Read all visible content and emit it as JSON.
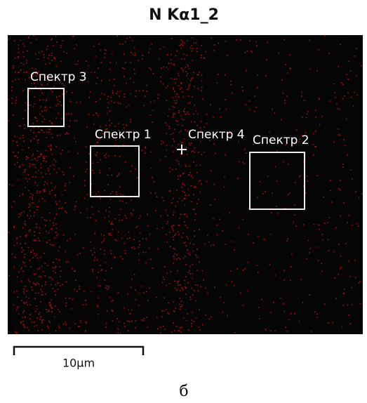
{
  "title": "N Kα1_2",
  "labels": {
    "spectrum_3": "Спектр 3",
    "spectrum_1": "Спектр 1",
    "spectrum_4": "Спектр 4",
    "spectrum_2": "Спектр 2"
  },
  "scale_bar": "10µm",
  "caption": "б"
}
